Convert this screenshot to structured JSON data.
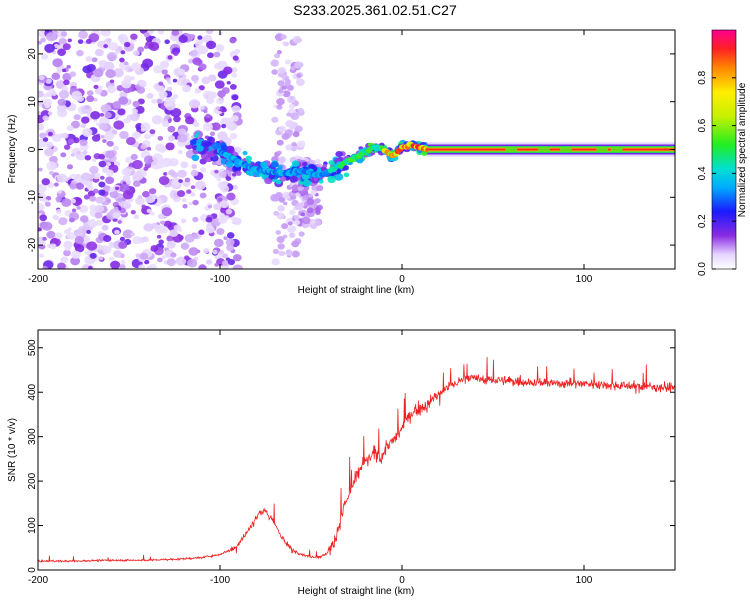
{
  "figure": {
    "title": "S233.2025.361.02.51.C27"
  },
  "chart_data": [
    {
      "type": "heatmap",
      "title": "S233.2025.361.02.51.C27",
      "xlabel": "Height of straight line (km)",
      "ylabel": "Frequency (Hz)",
      "xlim": [
        -200,
        150
      ],
      "ylim": [
        -25,
        25
      ],
      "xticks": [
        -200,
        -100,
        0,
        100
      ],
      "yticks": [
        -20,
        -10,
        0,
        10,
        20
      ],
      "colorbar": {
        "label": "Normalized spectral amplitude",
        "range": [
          0,
          1
        ],
        "ticks": [
          0.0,
          0.2,
          0.4,
          0.6,
          0.8
        ]
      },
      "ridge": {
        "x": [
          -105,
          -95,
          -85,
          -75,
          -65,
          -55,
          -45,
          -35,
          -25,
          -20,
          -15,
          -10,
          -5,
          0,
          5,
          10,
          15,
          150
        ],
        "y": [
          1,
          -1.5,
          -3.5,
          -4.5,
          -5,
          -4.5,
          -5.5,
          -3.5,
          -1.5,
          -0.5,
          0.5,
          0,
          -1.5,
          0.5,
          1,
          0.3,
          0,
          0
        ]
      }
    },
    {
      "type": "line",
      "xlabel": "Height of straight line (km)",
      "ylabel": "SNR (10 * v/v)",
      "xlim": [
        -200,
        150
      ],
      "ylim": [
        0,
        540
      ],
      "xticks": [
        -200,
        -100,
        0,
        100
      ],
      "yticks": [
        0,
        100,
        200,
        300,
        400,
        500
      ],
      "color": "#ee2222",
      "series": [
        {
          "name": "SNR",
          "x": [
            -200,
            -180,
            -160,
            -140,
            -120,
            -110,
            -100,
            -92,
            -86,
            -82,
            -78,
            -75,
            -72,
            -68,
            -64,
            -60,
            -55,
            -50,
            -45,
            -42,
            -38,
            -35,
            -32,
            -28,
            -25,
            -22,
            -18,
            -15,
            -12,
            -8,
            -5,
            -2,
            0,
            3,
            6,
            10,
            14,
            18,
            22,
            26,
            30,
            35,
            40,
            60,
            80,
            100,
            120,
            150
          ],
          "values": [
            20,
            20,
            22,
            22,
            25,
            28,
            35,
            50,
            80,
            105,
            130,
            135,
            115,
            90,
            60,
            45,
            35,
            30,
            30,
            35,
            55,
            95,
            140,
            180,
            210,
            235,
            250,
            265,
            250,
            280,
            290,
            305,
            320,
            340,
            355,
            365,
            370,
            390,
            400,
            415,
            420,
            435,
            430,
            425,
            420,
            420,
            415,
            410
          ]
        }
      ]
    }
  ]
}
